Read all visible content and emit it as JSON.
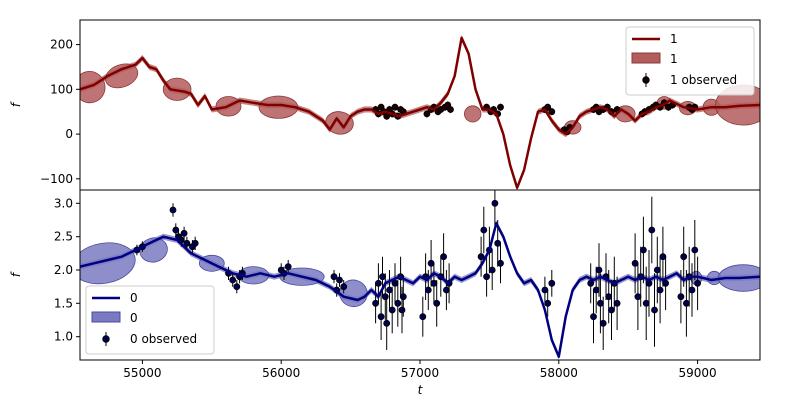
{
  "chart_data": [
    {
      "type": "line",
      "panel": "top",
      "ylabel": "f",
      "xlabel": "",
      "xlim": [
        54550,
        59450
      ],
      "ylim": [
        -125,
        255
      ],
      "yticks": [
        -100,
        0,
        100,
        200
      ],
      "xticks": [],
      "legend_position": "upper-right",
      "series": [
        {
          "name": "1",
          "kind": "mean",
          "color": "#800000"
        },
        {
          "name": "1",
          "kind": "band",
          "color": "#b35c5c"
        },
        {
          "name": "1 observed",
          "kind": "observed",
          "color": "#1a0000"
        }
      ],
      "line": {
        "x": [
          54550,
          54650,
          54750,
          54850,
          54950,
          55000,
          55050,
          55100,
          55150,
          55200,
          55300,
          55350,
          55400,
          55450,
          55500,
          55600,
          55700,
          55800,
          55900,
          56000,
          56100,
          56200,
          56300,
          56350,
          56400,
          56450,
          56500,
          56550,
          56600,
          56650,
          56700,
          56750,
          56800,
          56850,
          56900,
          56950,
          57000,
          57050,
          57100,
          57150,
          57200,
          57250,
          57300,
          57350,
          57400,
          57450,
          57500,
          57550,
          57600,
          57650,
          57700,
          57750,
          57800,
          57850,
          57900,
          57950,
          58000,
          58050,
          58100,
          58150,
          58200,
          58250,
          58300,
          58350,
          58400,
          58450,
          58500,
          58550,
          58600,
          58650,
          58700,
          58750,
          58800,
          58900,
          59000,
          59100,
          59200,
          59300,
          59450
        ],
        "y": [
          100,
          110,
          130,
          145,
          155,
          170,
          150,
          145,
          120,
          100,
          95,
          90,
          65,
          85,
          55,
          60,
          75,
          70,
          65,
          65,
          60,
          50,
          30,
          10,
          35,
          15,
          40,
          50,
          55,
          55,
          45,
          50,
          45,
          40,
          45,
          50,
          55,
          60,
          55,
          70,
          90,
          130,
          215,
          180,
          100,
          55,
          55,
          45,
          0,
          -70,
          -120,
          -80,
          -10,
          50,
          55,
          30,
          10,
          0,
          15,
          40,
          50,
          55,
          60,
          55,
          40,
          55,
          45,
          30,
          45,
          50,
          60,
          65,
          75,
          60,
          55,
          60,
          60,
          63,
          65
        ]
      },
      "band_ellipses": [
        {
          "x": 54620,
          "y": 105,
          "rx": 110,
          "ry": 35,
          "rot": -15
        },
        {
          "x": 54850,
          "y": 130,
          "rx": 120,
          "ry": 25,
          "rot": -20
        },
        {
          "x": 55250,
          "y": 100,
          "rx": 100,
          "ry": 25,
          "rot": 0
        },
        {
          "x": 55620,
          "y": 62,
          "rx": 90,
          "ry": 22,
          "rot": 0
        },
        {
          "x": 55980,
          "y": 60,
          "rx": 140,
          "ry": 25,
          "rot": 0
        },
        {
          "x": 56420,
          "y": 25,
          "rx": 100,
          "ry": 25,
          "rot": 10
        },
        {
          "x": 57380,
          "y": 45,
          "rx": 60,
          "ry": 18,
          "rot": 0
        },
        {
          "x": 58100,
          "y": 15,
          "rx": 60,
          "ry": 15,
          "rot": 0
        },
        {
          "x": 58480,
          "y": 45,
          "rx": 70,
          "ry": 18,
          "rot": 0
        },
        {
          "x": 58760,
          "y": 70,
          "rx": 50,
          "ry": 14,
          "rot": 0
        },
        {
          "x": 58930,
          "y": 58,
          "rx": 60,
          "ry": 15,
          "rot": 0
        },
        {
          "x": 59100,
          "y": 60,
          "rx": 60,
          "ry": 18,
          "rot": 0
        },
        {
          "x": 59330,
          "y": 65,
          "rx": 200,
          "ry": 45,
          "rot": 0
        }
      ],
      "observed": {
        "x": [
          56680,
          56700,
          56720,
          56740,
          56760,
          56780,
          56800,
          56820,
          56840,
          56860,
          56880,
          57050,
          57080,
          57100,
          57130,
          57150,
          57180,
          57200,
          57220,
          57480,
          57510,
          57530,
          57560,
          57580,
          57900,
          57920,
          57950,
          58040,
          58060,
          58080,
          58250,
          58270,
          58290,
          58320,
          58350,
          58380,
          58420,
          58600,
          58620,
          58650,
          58680,
          58700,
          58730,
          58760,
          58790,
          58820,
          58940,
          58960,
          58980
        ],
        "y": [
          55,
          45,
          60,
          50,
          40,
          55,
          45,
          60,
          40,
          55,
          50,
          45,
          55,
          60,
          50,
          55,
          60,
          65,
          55,
          60,
          50,
          55,
          45,
          60,
          55,
          60,
          50,
          10,
          5,
          15,
          55,
          60,
          50,
          55,
          60,
          50,
          55,
          45,
          50,
          55,
          60,
          65,
          60,
          70,
          60,
          65,
          60,
          55,
          60
        ],
        "err": [
          8,
          8,
          8,
          8,
          8,
          8,
          8,
          8,
          8,
          8,
          8,
          8,
          8,
          8,
          8,
          8,
          8,
          8,
          8,
          8,
          8,
          8,
          8,
          8,
          8,
          8,
          8,
          6,
          6,
          6,
          8,
          8,
          8,
          8,
          8,
          8,
          8,
          8,
          8,
          8,
          8,
          8,
          8,
          8,
          8,
          8,
          8,
          8,
          8
        ]
      }
    },
    {
      "type": "line",
      "panel": "bottom",
      "ylabel": "f",
      "xlabel": "t",
      "xlim": [
        54550,
        59450
      ],
      "ylim": [
        0.65,
        3.2
      ],
      "yticks": [
        1.0,
        1.5,
        2.0,
        2.5,
        3.0
      ],
      "xticks": [
        55000,
        56000,
        57000,
        58000,
        59000
      ],
      "legend_position": "lower-left",
      "series": [
        {
          "name": "0",
          "kind": "mean",
          "color": "#000080"
        },
        {
          "name": "0",
          "kind": "band",
          "color": "#7a7ac2"
        },
        {
          "name": "0 observed",
          "kind": "observed",
          "color": "#000050"
        }
      ],
      "line": {
        "x": [
          54550,
          54650,
          54750,
          54850,
          54950,
          55050,
          55150,
          55250,
          55350,
          55450,
          55550,
          55650,
          55750,
          55850,
          55950,
          56050,
          56150,
          56250,
          56350,
          56450,
          56550,
          56600,
          56650,
          56700,
          56750,
          56800,
          56850,
          56900,
          56950,
          57000,
          57050,
          57100,
          57150,
          57200,
          57250,
          57300,
          57350,
          57400,
          57450,
          57500,
          57550,
          57600,
          57650,
          57700,
          57750,
          57800,
          57850,
          57900,
          57950,
          58000,
          58050,
          58100,
          58150,
          58200,
          58250,
          58300,
          58350,
          58400,
          58450,
          58500,
          58550,
          58600,
          58650,
          58700,
          58750,
          58800,
          58850,
          58900,
          58950,
          59000,
          59100,
          59200,
          59300,
          59450
        ],
        "y": [
          2.05,
          2.1,
          2.15,
          2.2,
          2.3,
          2.4,
          2.5,
          2.45,
          2.25,
          2.15,
          2.05,
          1.95,
          1.9,
          1.95,
          1.9,
          1.95,
          1.9,
          1.85,
          1.75,
          1.6,
          1.55,
          1.6,
          1.7,
          1.6,
          1.8,
          1.85,
          1.9,
          1.85,
          1.8,
          1.9,
          1.85,
          1.95,
          1.9,
          1.8,
          1.9,
          1.85,
          1.9,
          1.95,
          2.1,
          2.3,
          2.7,
          2.5,
          2.2,
          1.95,
          1.8,
          1.85,
          1.7,
          1.4,
          0.95,
          0.7,
          1.3,
          1.7,
          1.85,
          1.9,
          1.85,
          1.9,
          1.85,
          1.8,
          1.85,
          1.9,
          1.85,
          1.9,
          1.85,
          1.9,
          1.85,
          1.9,
          1.95,
          1.85,
          1.9,
          1.9,
          1.85,
          1.88,
          1.88,
          1.9
        ]
      },
      "band_ellipses": [
        {
          "x": 54720,
          "y": 2.1,
          "rx": 230,
          "ry": 0.3,
          "rot": -10
        },
        {
          "x": 55080,
          "y": 2.3,
          "rx": 100,
          "ry": 0.18,
          "rot": -15
        },
        {
          "x": 55500,
          "y": 2.1,
          "rx": 90,
          "ry": 0.12,
          "rot": 0
        },
        {
          "x": 55800,
          "y": 1.92,
          "rx": 110,
          "ry": 0.13,
          "rot": 0
        },
        {
          "x": 56150,
          "y": 1.9,
          "rx": 160,
          "ry": 0.13,
          "rot": 0
        },
        {
          "x": 56520,
          "y": 1.65,
          "rx": 100,
          "ry": 0.2,
          "rot": 15
        },
        {
          "x": 58990,
          "y": 1.88,
          "rx": 40,
          "ry": 0.1,
          "rot": 0
        },
        {
          "x": 59120,
          "y": 1.88,
          "rx": 50,
          "ry": 0.1,
          "rot": 0
        },
        {
          "x": 59330,
          "y": 1.88,
          "rx": 180,
          "ry": 0.2,
          "rot": 0
        }
      ],
      "observed": {
        "x": [
          54960,
          55000,
          55220,
          55240,
          55260,
          55280,
          55300,
          55320,
          55360,
          55380,
          55620,
          55650,
          55680,
          55700,
          55720,
          56000,
          56020,
          56050,
          56380,
          56400,
          56420,
          56450,
          56680,
          56700,
          56720,
          56730,
          56750,
          56760,
          56780,
          56800,
          56820,
          56840,
          56860,
          56870,
          56880,
          57020,
          57040,
          57060,
          57080,
          57100,
          57120,
          57150,
          57170,
          57190,
          57210,
          57440,
          57460,
          57480,
          57500,
          57520,
          57540,
          57560,
          57580,
          57900,
          57920,
          57950,
          58230,
          58250,
          58270,
          58290,
          58300,
          58320,
          58340,
          58360,
          58380,
          58400,
          58420,
          58550,
          58570,
          58590,
          58610,
          58630,
          58650,
          58670,
          58690,
          58710,
          58730,
          58750,
          58770,
          58880,
          58900,
          58920,
          58940,
          58960,
          58980,
          59000
        ],
        "y": [
          2.3,
          2.35,
          2.9,
          2.6,
          2.5,
          2.45,
          2.55,
          2.4,
          2.35,
          2.4,
          1.95,
          1.85,
          1.75,
          1.9,
          1.95,
          2.0,
          1.95,
          2.05,
          1.9,
          1.7,
          1.85,
          1.75,
          1.5,
          1.8,
          1.3,
          1.9,
          1.6,
          1.2,
          1.7,
          1.4,
          1.8,
          1.5,
          1.9,
          1.4,
          1.6,
          1.3,
          1.9,
          1.7,
          2.1,
          1.8,
          1.5,
          1.9,
          2.2,
          1.7,
          1.8,
          2.2,
          2.6,
          1.9,
          2.3,
          2.0,
          3.0,
          2.4,
          2.1,
          1.7,
          1.5,
          1.8,
          1.8,
          1.3,
          1.7,
          2.0,
          1.5,
          1.2,
          1.9,
          1.6,
          1.4,
          1.8,
          1.5,
          2.1,
          1.6,
          1.9,
          2.3,
          1.5,
          1.8,
          2.6,
          1.4,
          2.0,
          1.7,
          2.2,
          1.8,
          1.6,
          2.2,
          1.5,
          1.9,
          1.7,
          2.3,
          1.8
        ],
        "err": [
          0.08,
          0.08,
          0.1,
          0.1,
          0.1,
          0.1,
          0.1,
          0.1,
          0.1,
          0.1,
          0.1,
          0.1,
          0.1,
          0.1,
          0.1,
          0.1,
          0.1,
          0.1,
          0.1,
          0.1,
          0.1,
          0.1,
          0.3,
          0.3,
          0.35,
          0.3,
          0.35,
          0.4,
          0.3,
          0.35,
          0.3,
          0.35,
          0.3,
          0.35,
          0.3,
          0.3,
          0.35,
          0.3,
          0.35,
          0.3,
          0.35,
          0.3,
          0.35,
          0.3,
          0.3,
          0.3,
          0.35,
          0.3,
          0.35,
          0.3,
          0.4,
          0.35,
          0.3,
          0.2,
          0.2,
          0.2,
          0.3,
          0.4,
          0.35,
          0.4,
          0.45,
          0.4,
          0.35,
          0.4,
          0.45,
          0.4,
          0.4,
          0.45,
          0.5,
          0.45,
          0.5,
          0.55,
          0.5,
          0.5,
          0.55,
          0.5,
          0.5,
          0.45,
          0.4,
          0.4,
          0.45,
          0.5,
          0.45,
          0.4,
          0.45,
          0.4
        ]
      }
    }
  ]
}
